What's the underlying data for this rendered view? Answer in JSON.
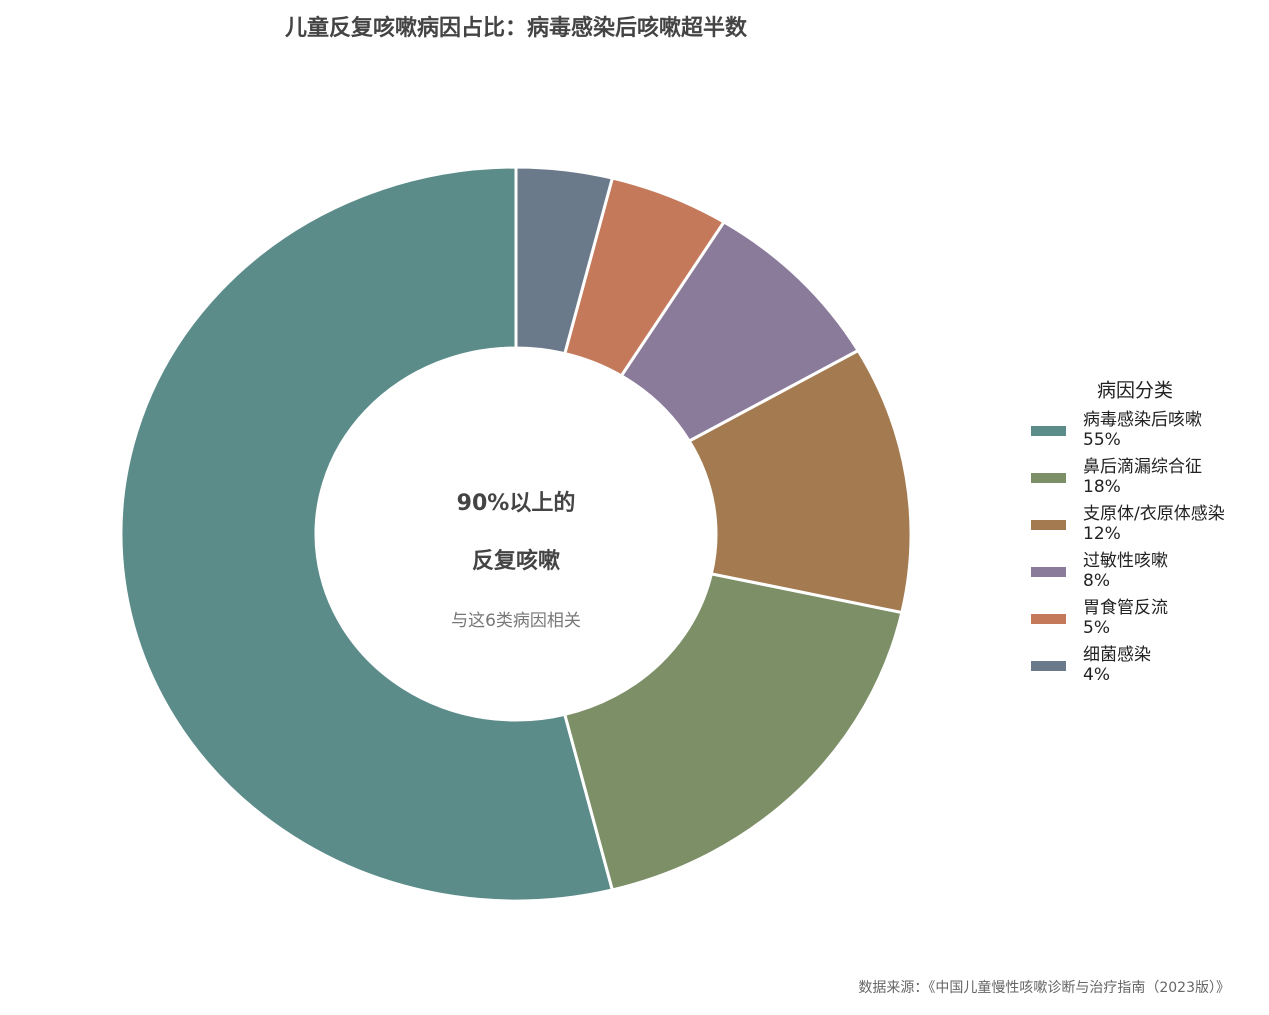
{
  "chart_data": {
    "type": "donut",
    "title": "儿童反复咳嗽病因占比：病毒感染后咳嗽超半数",
    "categories": [
      "病毒感染后咳嗽",
      "鼻后滴漏综合征",
      "支原体/衣原体感染",
      "过敏性咳嗽",
      "胃食管反流",
      "细菌感染"
    ],
    "values": [
      55,
      18,
      12,
      8,
      5,
      4
    ],
    "value_labels": [
      "55%",
      "18%",
      "12%",
      "8%",
      "5%",
      "4%"
    ],
    "colors": [
      "#5b8c8a",
      "#7d8f67",
      "#a47b50",
      "#8a7b9b",
      "#c47a5a",
      "#6b7a8a"
    ],
    "center_text": [
      "90%以上的",
      "反复咳嗽",
      "与这6类病因相关"
    ],
    "legend_title": "病因分类",
    "legend_position": "right",
    "source": "数据来源：《中国儿童慢性咳嗽诊断与治疗指南（2023版）》"
  }
}
